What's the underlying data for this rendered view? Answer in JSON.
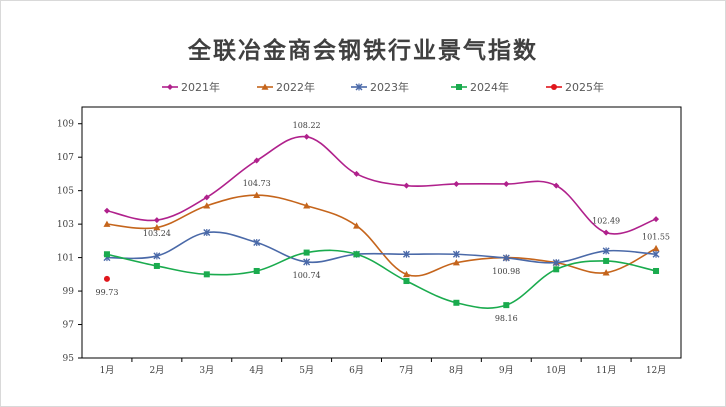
{
  "chart_data": {
    "type": "line",
    "title": "全联冶金商会钢铁行业景气指数",
    "xlabel": "",
    "ylabel": "",
    "categories": [
      "1月",
      "2月",
      "3月",
      "4月",
      "5月",
      "6月",
      "7月",
      "8月",
      "9月",
      "10月",
      "11月",
      "12月"
    ],
    "ylim": [
      95,
      110
    ],
    "yticks": [
      "95",
      "97",
      "99",
      "101",
      "103",
      "105",
      "107",
      "109"
    ],
    "grid": false,
    "legend_position": "top",
    "series": [
      {
        "name": "2021年",
        "color": "#b0218c",
        "marker": "diamond",
        "values": [
          103.8,
          103.24,
          104.6,
          106.8,
          108.22,
          106.0,
          105.3,
          105.4,
          105.4,
          105.3,
          102.49,
          103.3
        ]
      },
      {
        "name": "2022年",
        "color": "#c5651c",
        "marker": "triangle",
        "values": [
          103.0,
          102.8,
          104.1,
          104.73,
          104.1,
          102.9,
          100.0,
          100.7,
          101.0,
          100.7,
          100.1,
          101.55
        ]
      },
      {
        "name": "2023年",
        "color": "#4a69a8",
        "marker": "star",
        "values": [
          101.0,
          101.1,
          102.5,
          101.9,
          100.74,
          101.2,
          101.2,
          101.2,
          100.98,
          100.7,
          101.4,
          101.2
        ]
      },
      {
        "name": "2024年",
        "color": "#1aab4e",
        "marker": "square",
        "values": [
          101.2,
          100.5,
          100.0,
          100.2,
          101.3,
          101.2,
          99.6,
          98.3,
          98.16,
          100.3,
          100.8,
          100.2
        ]
      },
      {
        "name": "2025年",
        "color": "#e0161c",
        "marker": "circle",
        "values": [
          99.73,
          null,
          null,
          null,
          null,
          null,
          null,
          null,
          null,
          null,
          null,
          null
        ]
      }
    ],
    "data_labels": [
      {
        "series": 4,
        "index": 0,
        "text": "99.73"
      },
      {
        "series": 0,
        "index": 1,
        "text": "103.24"
      },
      {
        "series": 1,
        "index": 3,
        "text": "104.73"
      },
      {
        "series": 0,
        "index": 4,
        "text": "108.22"
      },
      {
        "series": 2,
        "index": 4,
        "text": "100.74"
      },
      {
        "series": 2,
        "index": 8,
        "text": "100.98"
      },
      {
        "series": 3,
        "index": 8,
        "text": "98.16"
      },
      {
        "series": 0,
        "index": 10,
        "text": "102.49"
      },
      {
        "series": 1,
        "index": 11,
        "text": "101.55"
      }
    ]
  }
}
